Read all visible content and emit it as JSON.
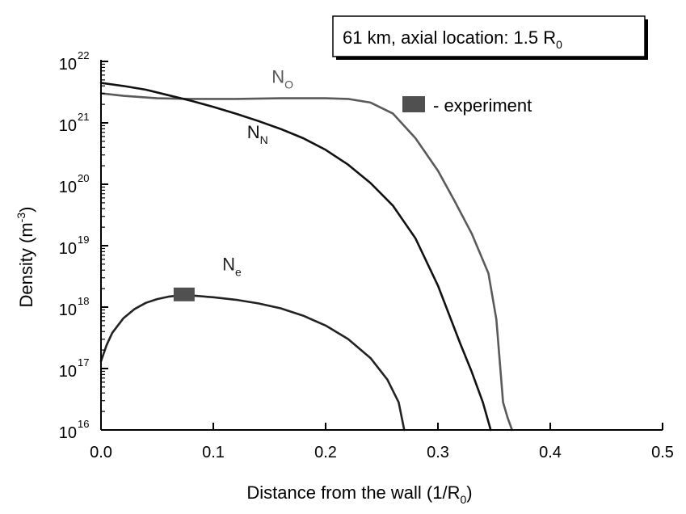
{
  "chart_data": {
    "type": "line",
    "title": "",
    "xlabel": "Distance from the wall (1/R",
    "xlabel_subscript": "0",
    "xlabel_suffix": ")",
    "ylabel": "Density (m",
    "ylabel_superscript": "-3",
    "ylabel_suffix": ")",
    "xlim": [
      0,
      0.5
    ],
    "ylim": [
      1e+16,
      1e+22
    ],
    "yscale": "log",
    "x_ticks": [
      0.0,
      0.1,
      0.2,
      0.3,
      0.4,
      0.5
    ],
    "x_tick_labels": [
      "0.0",
      "0.1",
      "0.2",
      "0.3",
      "0.4",
      "0.5"
    ],
    "y_tick_base": "10",
    "y_tick_exponents": [
      "16",
      "17",
      "18",
      "19",
      "20",
      "21",
      "22"
    ],
    "grid": false,
    "annotation_box": {
      "text": "61 km, axial location: 1.5 R",
      "subscript": "0"
    },
    "legend": {
      "label": "- experiment",
      "color": "#505050"
    },
    "series": [
      {
        "label_main": "N",
        "label_sub": "O",
        "color": "#5a5a5a",
        "label_anchor": [
          0.152,
          21.65
        ],
        "points": [
          [
            0.0,
            21.48
          ],
          [
            0.02,
            21.44
          ],
          [
            0.05,
            21.4
          ],
          [
            0.08,
            21.39
          ],
          [
            0.12,
            21.39
          ],
          [
            0.16,
            21.4
          ],
          [
            0.2,
            21.4
          ],
          [
            0.22,
            21.39
          ],
          [
            0.24,
            21.33
          ],
          [
            0.26,
            21.15
          ],
          [
            0.28,
            20.75
          ],
          [
            0.3,
            20.22
          ],
          [
            0.315,
            19.72
          ],
          [
            0.33,
            19.2
          ],
          [
            0.345,
            18.55
          ],
          [
            0.352,
            17.8
          ],
          [
            0.358,
            16.45
          ],
          [
            0.362,
            16.2
          ],
          [
            0.366,
            16.0
          ]
        ]
      },
      {
        "label_main": "N",
        "label_sub": "N",
        "color": "#111111",
        "label_anchor": [
          0.13,
          20.75
        ],
        "points": [
          [
            0.0,
            21.65
          ],
          [
            0.02,
            21.6
          ],
          [
            0.04,
            21.54
          ],
          [
            0.06,
            21.45
          ],
          [
            0.08,
            21.36
          ],
          [
            0.1,
            21.26
          ],
          [
            0.12,
            21.15
          ],
          [
            0.14,
            21.03
          ],
          [
            0.16,
            20.9
          ],
          [
            0.18,
            20.75
          ],
          [
            0.2,
            20.56
          ],
          [
            0.22,
            20.32
          ],
          [
            0.24,
            20.02
          ],
          [
            0.26,
            19.65
          ],
          [
            0.28,
            19.12
          ],
          [
            0.3,
            18.35
          ],
          [
            0.32,
            17.4
          ],
          [
            0.33,
            16.95
          ],
          [
            0.34,
            16.45
          ],
          [
            0.347,
            16.0
          ]
        ]
      },
      {
        "label_main": "N",
        "label_sub": "e",
        "color": "#222222",
        "label_anchor": [
          0.108,
          18.6
        ],
        "points": [
          [
            0.0,
            17.12
          ],
          [
            0.005,
            17.38
          ],
          [
            0.01,
            17.58
          ],
          [
            0.02,
            17.82
          ],
          [
            0.03,
            17.97
          ],
          [
            0.04,
            18.07
          ],
          [
            0.05,
            18.13
          ],
          [
            0.06,
            18.17
          ],
          [
            0.07,
            18.19
          ],
          [
            0.08,
            18.19
          ],
          [
            0.1,
            18.16
          ],
          [
            0.12,
            18.12
          ],
          [
            0.14,
            18.06
          ],
          [
            0.16,
            17.98
          ],
          [
            0.18,
            17.86
          ],
          [
            0.2,
            17.7
          ],
          [
            0.22,
            17.48
          ],
          [
            0.24,
            17.17
          ],
          [
            0.255,
            16.82
          ],
          [
            0.265,
            16.45
          ],
          [
            0.27,
            16.0
          ]
        ]
      }
    ],
    "experiment_points": [
      {
        "x": 0.074,
        "y": 18.2
      }
    ]
  }
}
